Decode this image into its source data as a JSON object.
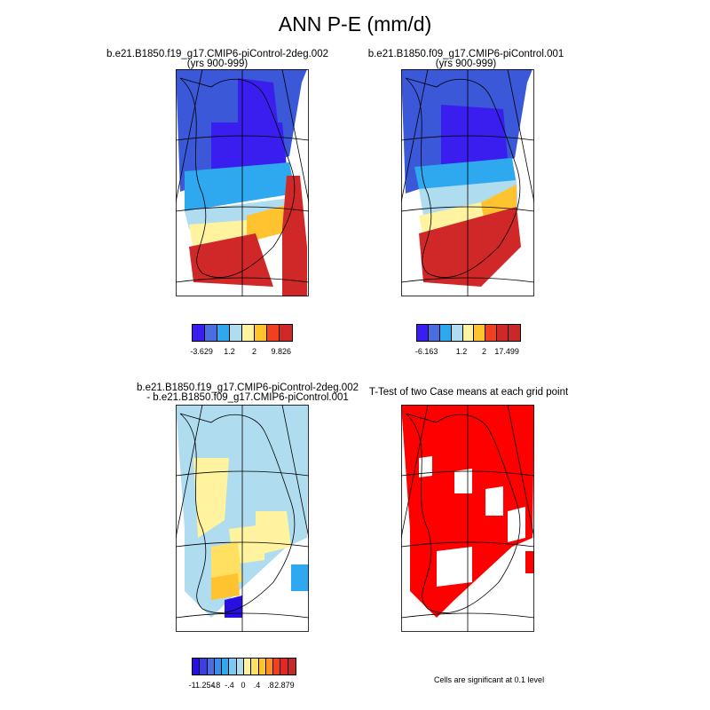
{
  "title": "ANN P-E (mm/d)",
  "panels": [
    {
      "id": "case1",
      "title_line1": "b.e21.B1850.f19_g17.CMIP6-piControl-2deg.002",
      "title_line2": "(yrs 900-999)",
      "colorbar": {
        "colors": [
          "#3a1ef0",
          "#4a6ee0",
          "#2ea8ee",
          "#b0dcf0",
          "#fff3a0",
          "#ffc330",
          "#f04020",
          "#d02828"
        ],
        "tick_labels": [
          "-3.629",
          "1.2",
          "2",
          "9.826"
        ]
      }
    },
    {
      "id": "case2",
      "title_line1": "b.e21.B1850.f09_g17.CMIP6-piControl.001",
      "title_line2": "(yrs 900-999)",
      "colorbar": {
        "colors": [
          "#3a1ef0",
          "#4a6ee0",
          "#2ea8ee",
          "#b0dcf0",
          "#fff3a0",
          "#ffc330",
          "#f04020",
          "#d02828",
          "#c82828"
        ],
        "tick_labels": [
          "-6.163",
          "1.2",
          "2",
          "17.499"
        ]
      }
    },
    {
      "id": "difference",
      "title_line1": "b.e21.B1850.f19_g17.CMIP6-piControl-2deg.002",
      "title_line2": "- b.e21.B1850.f09_g17.CMIP6-piControl.001",
      "colorbar": {
        "colors": [
          "#2a10e0",
          "#3a40e8",
          "#4a6ee0",
          "#3a8ee8",
          "#2ea8ee",
          "#80c8f0",
          "#b0dcf0",
          "#fff3a0",
          "#ffe060",
          "#ffc330",
          "#ff9020",
          "#f04020",
          "#e02828",
          "#c82828"
        ],
        "tick_labels": [
          "-11.254",
          "-.8",
          "-.4",
          "0",
          ".4",
          ".8",
          "2.879"
        ]
      }
    },
    {
      "id": "ttest",
      "title_line1": "T-Test of two Case means at each grid point",
      "note": "Cells are significant at 0.1 level",
      "significant_color": "#ff0000"
    }
  ]
}
